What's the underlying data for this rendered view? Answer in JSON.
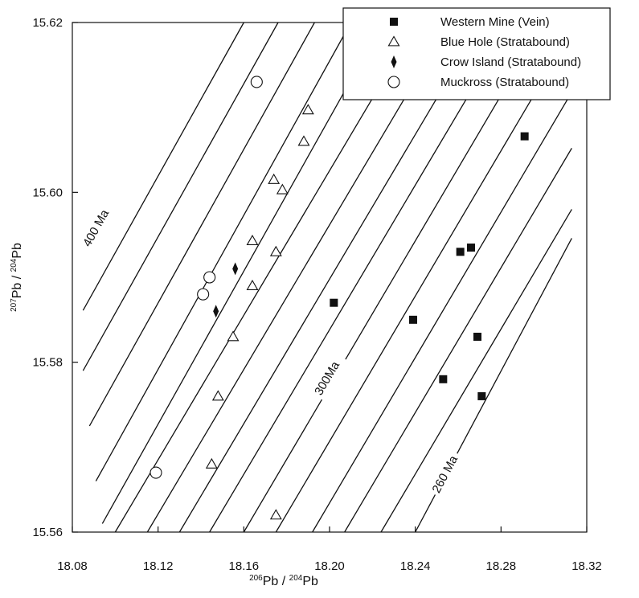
{
  "chart_data": {
    "type": "scatter",
    "xlabel": {
      "sup": "206",
      "main": "Pb / ",
      "sup2": "204",
      "main2": "Pb"
    },
    "ylabel": {
      "sup": "207",
      "main": "Pb / ",
      "sup2": "204",
      "main2": "Pb"
    },
    "xlim": [
      18.08,
      18.32
    ],
    "ylim": [
      15.56,
      15.62
    ],
    "x_ticks": [
      "18.08",
      "18.12",
      "18.16",
      "18.20",
      "18.24",
      "18.28",
      "18.32"
    ],
    "y_ticks": [
      "15.56",
      "15.58",
      "15.60",
      "15.62"
    ],
    "grid": false,
    "legend_position": "top-right",
    "series": [
      {
        "name": "Western Mine (Vein)",
        "marker": "filled-square",
        "points": [
          [
            18.291,
            15.6066
          ],
          [
            18.202,
            15.587
          ],
          [
            18.239,
            15.585
          ],
          [
            18.261,
            15.593
          ],
          [
            18.266,
            15.5935
          ],
          [
            18.269,
            15.583
          ],
          [
            18.253,
            15.578
          ],
          [
            18.271,
            15.576
          ]
        ]
      },
      {
        "name": "Blue Hole (Stratabound)",
        "marker": "open-triangle",
        "points": [
          [
            18.19,
            15.6097
          ],
          [
            18.188,
            15.606
          ],
          [
            18.174,
            15.6015
          ],
          [
            18.178,
            15.6003
          ],
          [
            18.164,
            15.5943
          ],
          [
            18.175,
            15.593
          ],
          [
            18.164,
            15.589
          ],
          [
            18.155,
            15.583
          ],
          [
            18.148,
            15.576
          ],
          [
            18.145,
            15.568
          ],
          [
            18.175,
            15.562
          ]
        ]
      },
      {
        "name": "Crow Island (Stratabound)",
        "marker": "filled-diamond",
        "points": [
          [
            18.156,
            15.591
          ],
          [
            18.147,
            15.586
          ]
        ]
      },
      {
        "name": "Muckross (Stratabound)",
        "marker": "open-circle",
        "points": [
          [
            18.166,
            15.613
          ],
          [
            18.144,
            15.59
          ],
          [
            18.141,
            15.588
          ],
          [
            18.119,
            15.567
          ]
        ]
      }
    ],
    "reference_lines": {
      "description": "isochron lines",
      "lines": [
        [
          [
            18.085,
            15.5861
          ],
          [
            18.16,
            15.62
          ]
        ],
        [
          [
            18.085,
            15.579
          ],
          [
            18.176,
            15.62
          ]
        ],
        [
          [
            18.088,
            15.5725
          ],
          [
            18.193,
            15.62
          ]
        ],
        [
          [
            18.091,
            15.566
          ],
          [
            18.21,
            15.62
          ]
        ],
        [
          [
            18.094,
            15.561
          ],
          [
            18.225,
            15.62
          ]
        ],
        [
          [
            18.1,
            15.56
          ],
          [
            18.241,
            15.62
          ]
        ],
        [
          [
            18.115,
            15.56
          ],
          [
            18.256,
            15.62
          ]
        ],
        [
          [
            18.13,
            15.56
          ],
          [
            18.271,
            15.62
          ]
        ],
        [
          [
            18.144,
            15.56
          ],
          [
            18.285,
            15.62
          ]
        ],
        [
          [
            18.16,
            15.56
          ],
          [
            18.3,
            15.62
          ]
        ],
        [
          [
            18.175,
            15.56
          ],
          [
            18.313,
            15.619
          ]
        ],
        [
          [
            18.192,
            15.56
          ],
          [
            18.313,
            15.6118
          ]
        ],
        [
          [
            18.207,
            15.56
          ],
          [
            18.313,
            15.6052
          ]
        ],
        [
          [
            18.224,
            15.56
          ],
          [
            18.313,
            15.598
          ]
        ],
        [
          [
            18.24,
            15.56
          ],
          [
            18.313,
            15.5946
          ]
        ]
      ],
      "labels": [
        {
          "text": "400 Ma",
          "at": [
            18.088,
            15.5935
          ]
        },
        {
          "text": "300Ma",
          "at": [
            18.196,
            15.576
          ]
        },
        {
          "text": "260 Ma",
          "at": [
            18.251,
            15.5645
          ]
        }
      ]
    }
  }
}
